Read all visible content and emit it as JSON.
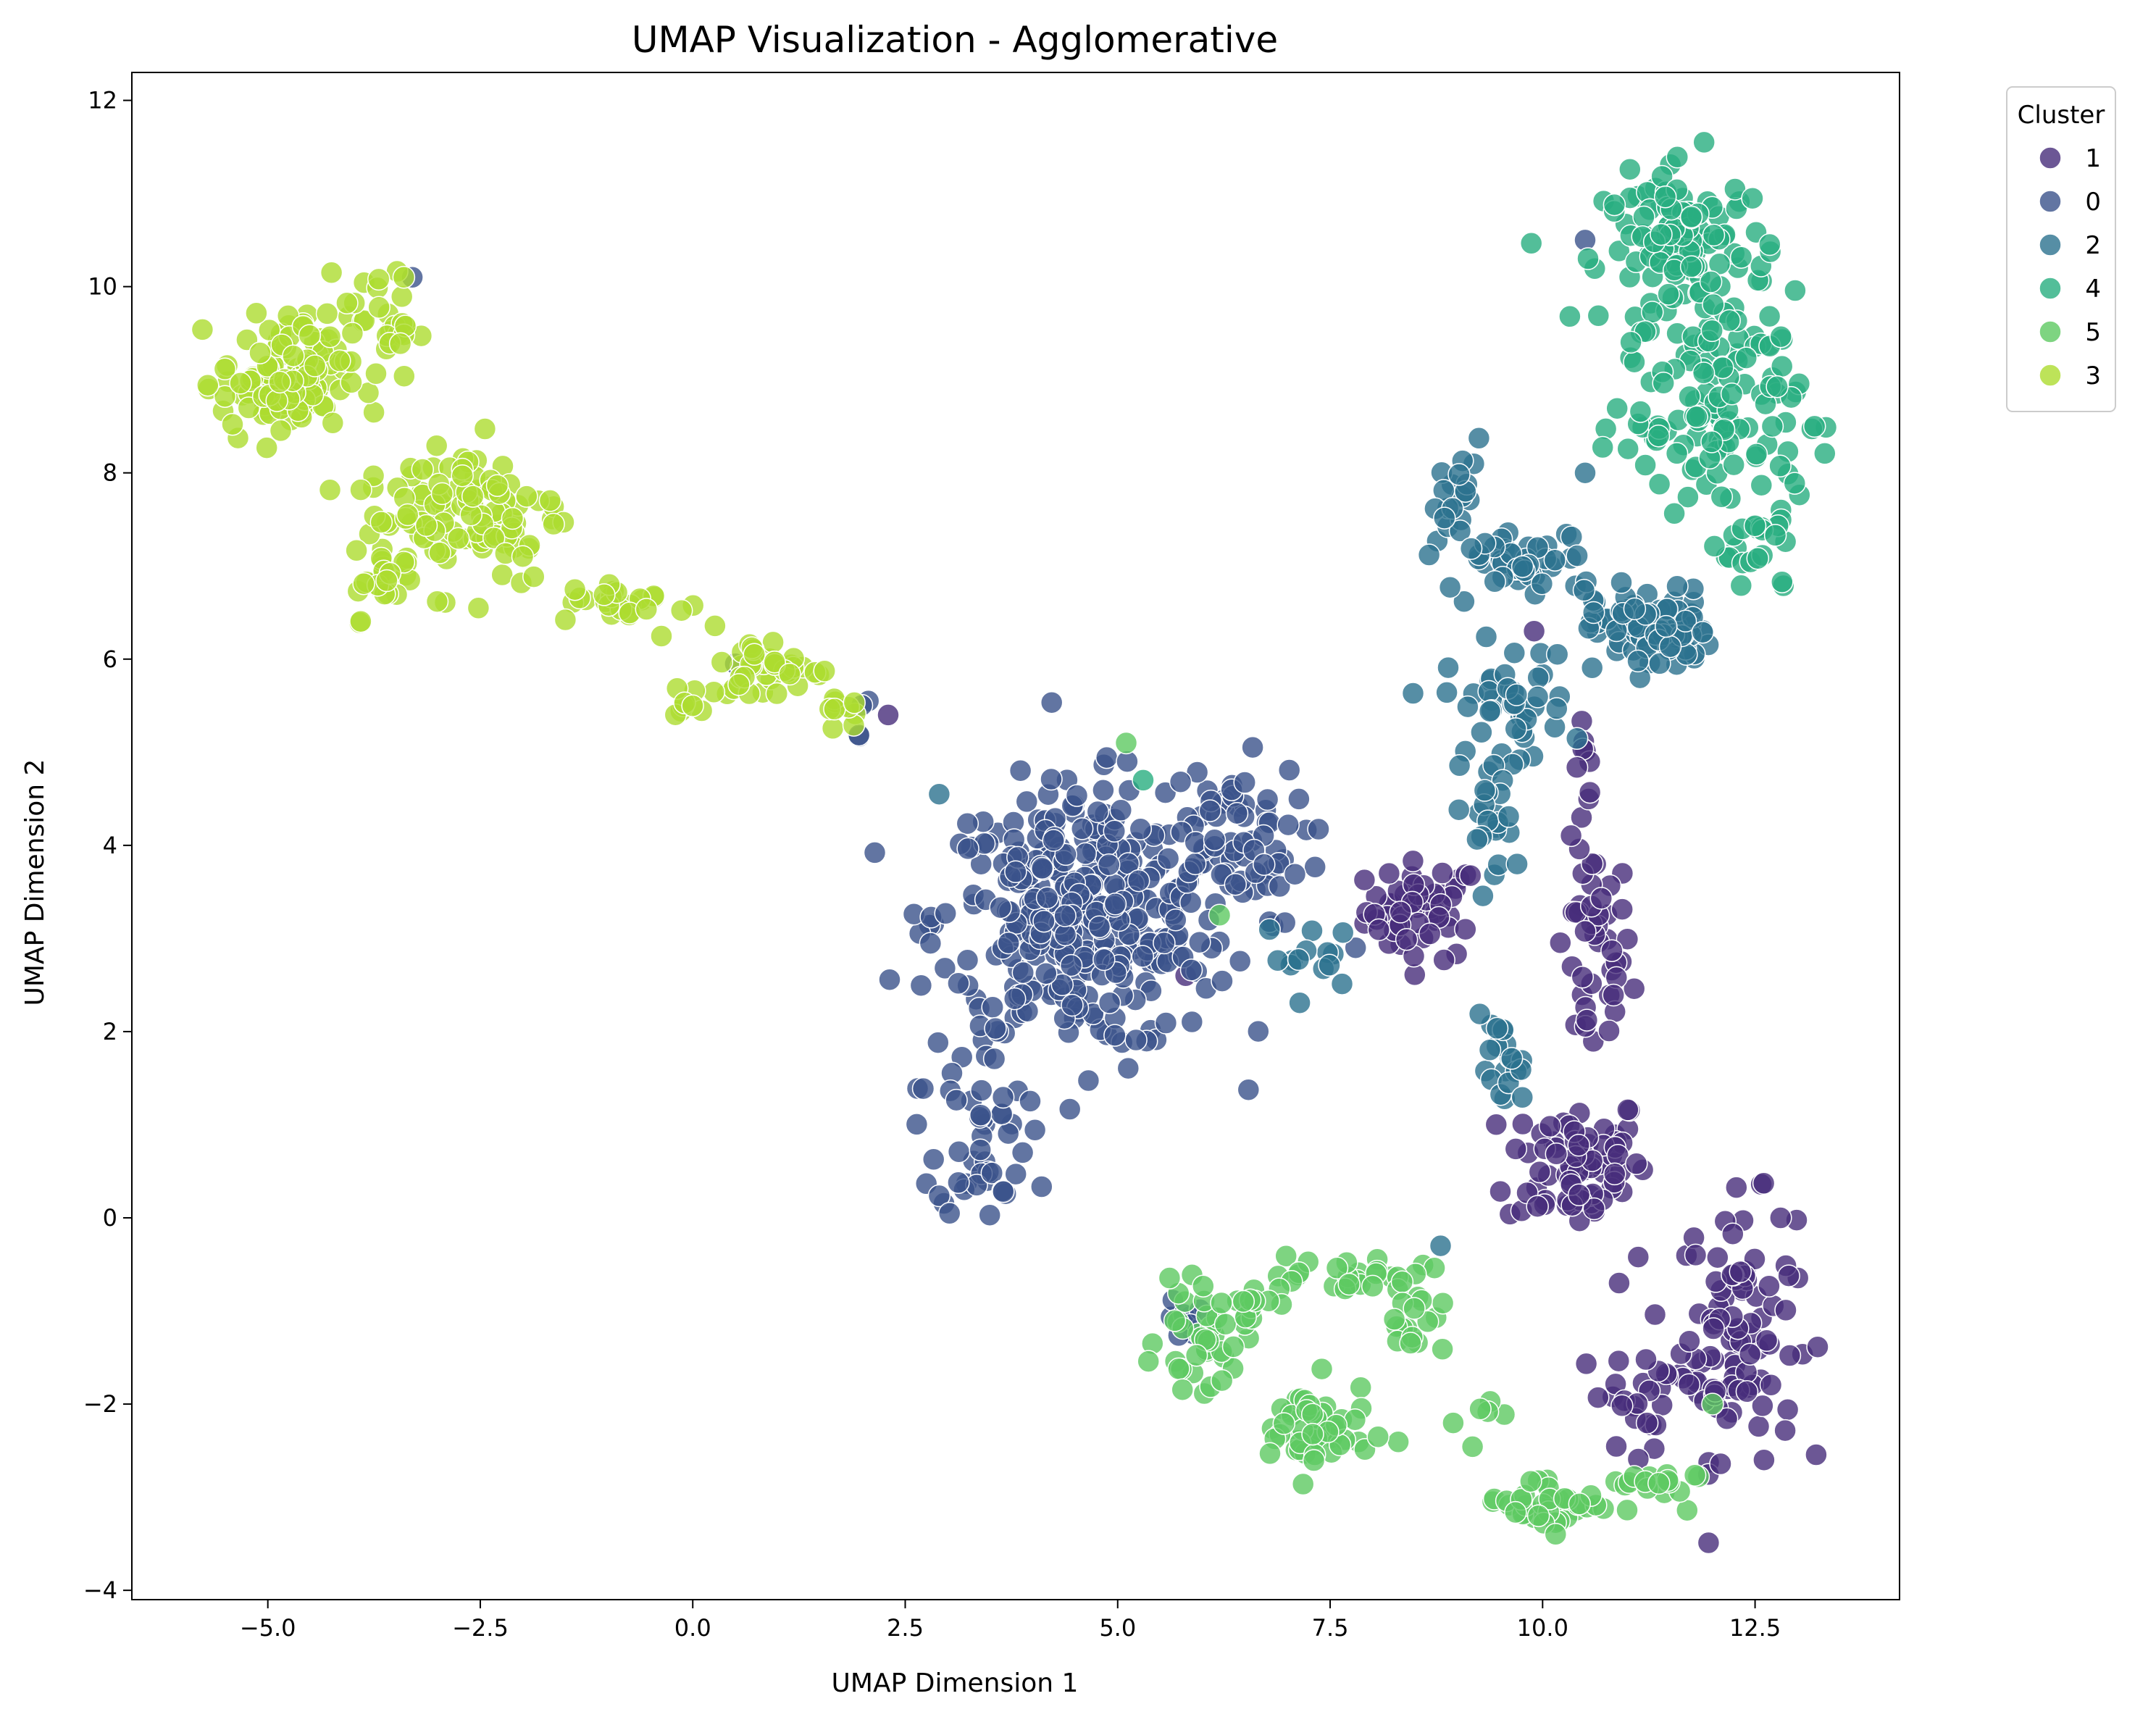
{
  "chart_data": {
    "type": "scatter",
    "title": "UMAP Visualization - Agglomerative",
    "xlabel": "UMAP Dimension 1",
    "ylabel": "UMAP Dimension 2",
    "xlim": [
      -6.6,
      14.2
    ],
    "ylim": [
      -4.1,
      12.3
    ],
    "xticks": [
      -5.0,
      -2.5,
      0.0,
      2.5,
      5.0,
      7.5,
      10.0,
      12.5
    ],
    "xtick_labels": [
      "−5.0",
      "−2.5",
      "0.0",
      "2.5",
      "5.0",
      "7.5",
      "10.0",
      "12.5"
    ],
    "yticks": [
      -4,
      -2,
      0,
      2,
      4,
      6,
      8,
      10,
      12
    ],
    "ytick_labels": [
      "−4",
      "−2",
      "0",
      "2",
      "4",
      "6",
      "8",
      "10",
      "12"
    ],
    "grid": false,
    "legend": {
      "title": "Cluster",
      "placement": "outside-upper-right"
    },
    "series": [
      {
        "name": "1",
        "color": "#472d7b",
        "clusters": [
          [
            8.6,
            3.3,
            0.45,
            0.35,
            55
          ],
          [
            10.6,
            2.8,
            0.3,
            0.8,
            45
          ],
          [
            10.4,
            0.6,
            0.55,
            0.5,
            75
          ],
          [
            12.3,
            -1.2,
            0.45,
            0.9,
            90
          ],
          [
            11.3,
            -1.9,
            0.6,
            0.35,
            30
          ],
          [
            10.5,
            4.9,
            0.08,
            0.3,
            8
          ]
        ],
        "points": [
          [
            11.8,
            -0.4
          ],
          [
            12.8,
            0.0
          ],
          [
            5.8,
            2.6
          ],
          [
            10.9,
            -0.7
          ],
          [
            2.3,
            5.4
          ],
          [
            9.9,
            6.3
          ]
        ]
      },
      {
        "name": "0",
        "color": "#3b528b",
        "clusters": [
          [
            4.6,
            3.2,
            1.15,
            0.95,
            380
          ],
          [
            3.4,
            0.9,
            0.35,
            0.6,
            45
          ],
          [
            6.3,
            4.0,
            0.6,
            0.6,
            60
          ],
          [
            5.9,
            -1.1,
            0.2,
            0.15,
            8
          ],
          [
            1.9,
            5.4,
            0.1,
            0.2,
            4
          ]
        ],
        "points": [
          [
            -3.3,
            10.1
          ],
          [
            0.5,
            5.95
          ],
          [
            10.5,
            10.5
          ],
          [
            7.8,
            2.9
          ]
        ]
      },
      {
        "name": "2",
        "color": "#2c728e",
        "clusters": [
          [
            11.3,
            6.3,
            0.45,
            0.3,
            75
          ],
          [
            9.9,
            7.0,
            0.6,
            0.25,
            40
          ],
          [
            9.0,
            7.6,
            0.2,
            0.5,
            25
          ],
          [
            9.6,
            5.5,
            0.5,
            0.45,
            45
          ],
          [
            9.4,
            4.4,
            0.3,
            0.4,
            20
          ],
          [
            9.5,
            1.6,
            0.2,
            0.35,
            20
          ],
          [
            7.3,
            2.8,
            0.4,
            0.25,
            14
          ]
        ],
        "points": [
          [
            8.8,
            -0.3
          ],
          [
            2.9,
            4.55
          ],
          [
            10.6,
            6.5
          ],
          [
            9.7,
            3.8
          ],
          [
            10.5,
            8.0
          ]
        ]
      },
      {
        "name": "4",
        "color": "#28ae80",
        "clusters": [
          [
            11.7,
            10.4,
            0.65,
            0.55,
            120
          ],
          [
            12.2,
            8.7,
            0.55,
            0.9,
            100
          ],
          [
            11.3,
            8.5,
            0.3,
            0.5,
            20
          ],
          [
            12.6,
            7.2,
            0.3,
            0.4,
            20
          ]
        ],
        "points": [
          [
            5.3,
            4.7
          ],
          [
            11.9,
            11.55
          ],
          [
            13.2,
            8.5
          ]
        ]
      },
      {
        "name": "5",
        "color": "#5ec962",
        "clusters": [
          [
            7.3,
            -2.3,
            0.45,
            0.35,
            55
          ],
          [
            6.0,
            -1.3,
            0.35,
            0.35,
            40
          ],
          [
            7.8,
            -0.6,
            0.9,
            0.15,
            25
          ],
          [
            8.4,
            -1.0,
            0.3,
            0.3,
            20
          ],
          [
            10.1,
            -3.05,
            0.55,
            0.2,
            40
          ],
          [
            11.2,
            -2.9,
            0.4,
            0.15,
            15
          ],
          [
            9.3,
            -2.2,
            0.2,
            0.2,
            6
          ],
          [
            6.5,
            -0.9,
            0.2,
            0.15,
            8
          ]
        ],
        "points": [
          [
            5.1,
            5.1
          ],
          [
            6.2,
            3.25
          ],
          [
            12.0,
            -2.0
          ]
        ]
      },
      {
        "name": "3",
        "color": "#addc30",
        "clusters": [
          [
            -4.8,
            9.0,
            0.5,
            0.45,
            110
          ],
          [
            -3.7,
            9.6,
            0.3,
            0.4,
            30
          ],
          [
            -2.7,
            7.6,
            0.8,
            0.55,
            110
          ],
          [
            -3.6,
            6.8,
            0.25,
            0.25,
            20
          ],
          [
            -0.8,
            6.6,
            0.5,
            0.15,
            25
          ],
          [
            0.9,
            5.9,
            0.5,
            0.22,
            40
          ],
          [
            1.8,
            5.5,
            0.2,
            0.15,
            10
          ],
          [
            -0.1,
            5.6,
            0.1,
            0.25,
            8
          ]
        ],
        "points": [
          [
            -3.4,
            10.1
          ]
        ]
      }
    ]
  }
}
